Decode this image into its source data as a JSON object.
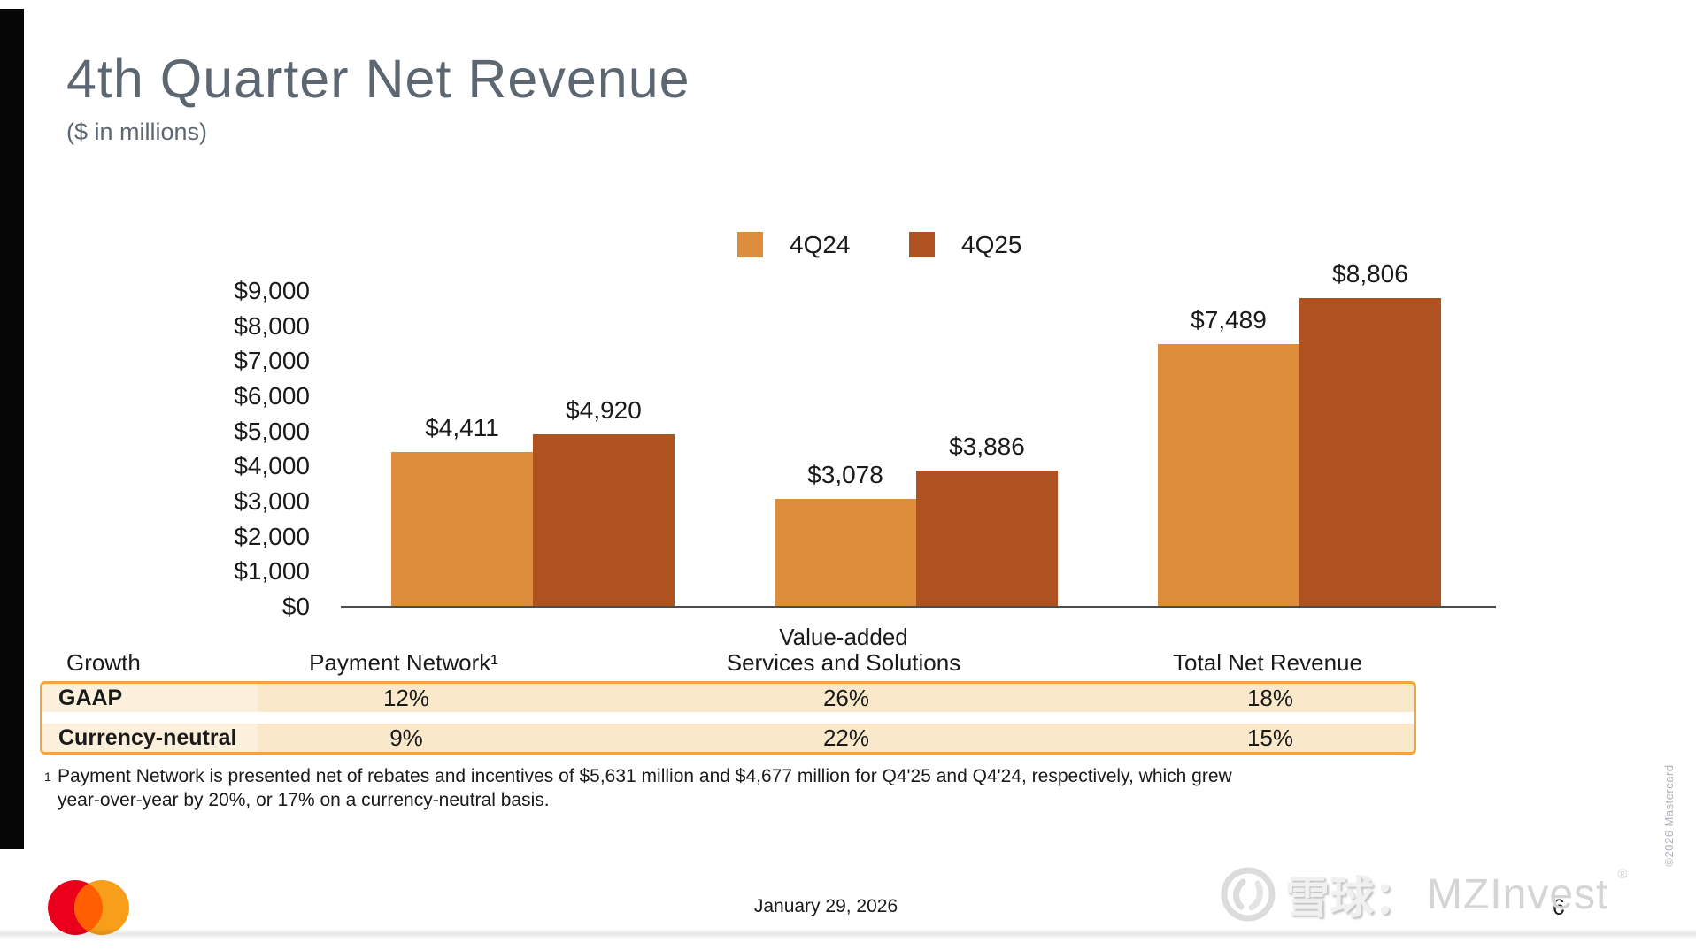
{
  "slide": {
    "title": "4th Quarter Net Revenue",
    "subtitle": "($ in millions)"
  },
  "colors": {
    "q4_24": "#DE8D3C",
    "q4_25": "#B05120",
    "title_gray": "#5C6771",
    "table_border": "#EFA640",
    "table_row_bg": "#FAE8CB",
    "table_label_bg": "#FBF0DB",
    "mc_red": "#EB001B",
    "mc_yellow": "#F79E1B",
    "mc_overlap": "#FF5F00"
  },
  "chart_data": {
    "type": "bar",
    "title": "4th Quarter Net Revenue",
    "units": "$ in millions",
    "categories": [
      "Payment Network",
      "Value-added Services and Solutions",
      "Total Net Revenue"
    ],
    "series": [
      {
        "name": "4Q24",
        "color": "#DE8D3C",
        "values": [
          4411,
          3078,
          7489
        ],
        "labels": [
          "$4,411",
          "$3,078",
          "$7,489"
        ]
      },
      {
        "name": "4Q25",
        "color": "#B05120",
        "values": [
          4920,
          3886,
          8806
        ],
        "labels": [
          "$4,920",
          "$3,886",
          "$8,806"
        ]
      }
    ],
    "y_axis": {
      "min": 0,
      "max": 9000,
      "step": 1000,
      "tick_labels": [
        "$0",
        "$1,000",
        "$2,000",
        "$3,000",
        "$4,000",
        "$5,000",
        "$6,000",
        "$7,000",
        "$8,000",
        "$9,000"
      ]
    },
    "grid": false,
    "legend_position": "top-center"
  },
  "growth_table": {
    "corner_label": "Growth",
    "columns": [
      {
        "lines": [
          "Payment Network¹"
        ]
      },
      {
        "lines": [
          "Value-added",
          "Services and Solutions"
        ]
      },
      {
        "lines": [
          "Total Net Revenue"
        ]
      }
    ],
    "rows": [
      {
        "label": "GAAP",
        "values": [
          "12%",
          "26%",
          "18%"
        ]
      },
      {
        "label": "Currency-neutral",
        "values": [
          "9%",
          "22%",
          "15%"
        ]
      }
    ]
  },
  "footnote": {
    "marker": "1",
    "text": "Payment Network is presented net of rebates and incentives of $5,631 million and $4,677 million for Q4'25 and Q4'24, respectively, which grew year-over-year by 20%, or 17% on a currency-neutral basis."
  },
  "footer": {
    "date": "January 29, 2026",
    "page": "6",
    "copyright": "©2026 Mastercard"
  },
  "watermark": {
    "prefix": "雪球：",
    "name": "MZInvest",
    "reg": "®"
  }
}
